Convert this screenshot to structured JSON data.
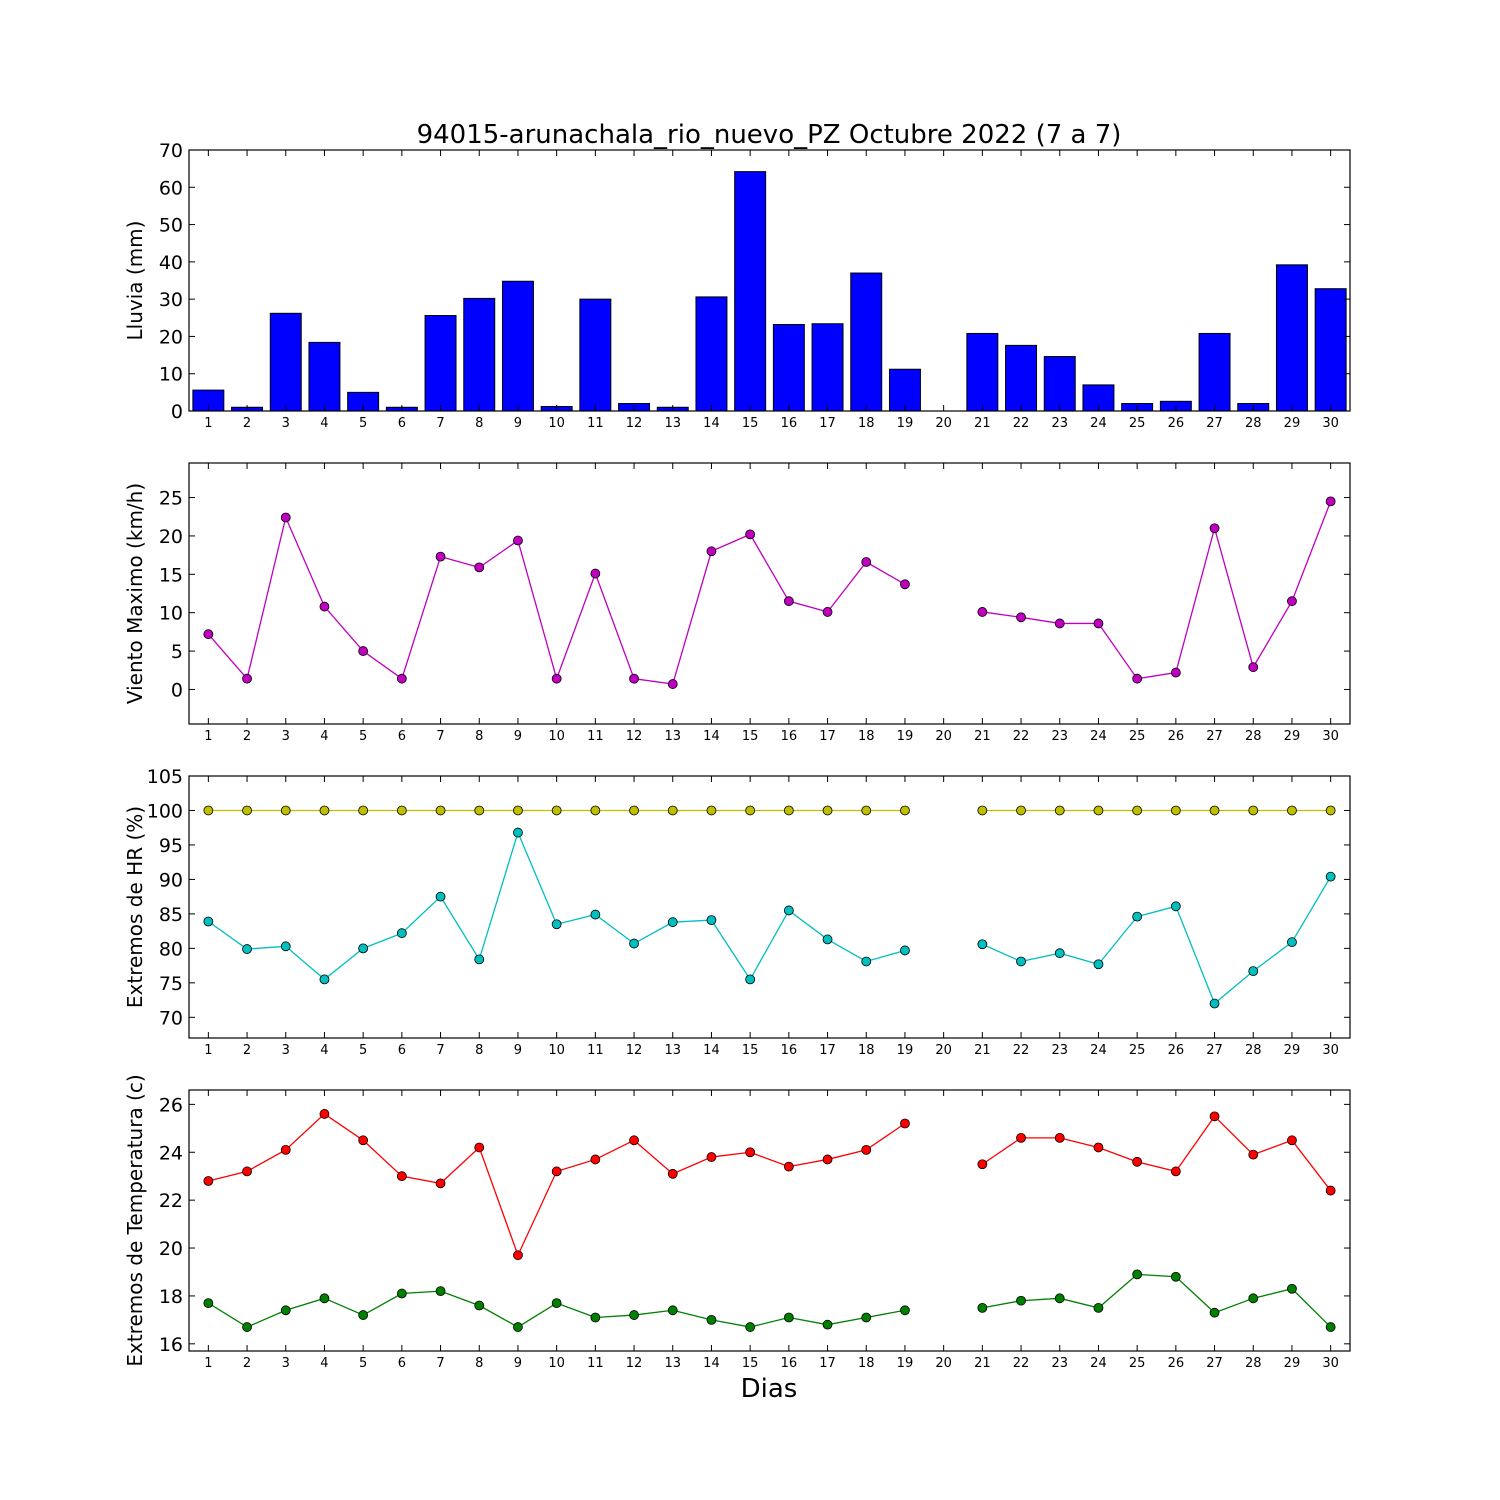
{
  "title": "94015-arunachala_rio_nuevo_PZ Octubre 2022  (7 a 7)",
  "xlabel": "Dias",
  "chart_data": [
    {
      "type": "bar",
      "ylabel": "Lluvia (mm)",
      "x": [
        1,
        2,
        3,
        4,
        5,
        6,
        7,
        8,
        9,
        10,
        11,
        12,
        13,
        14,
        15,
        16,
        17,
        18,
        19,
        20,
        21,
        22,
        23,
        24,
        25,
        26,
        27,
        28,
        29,
        30
      ],
      "xlim": [
        0.5,
        30.5
      ],
      "ylim": [
        0,
        70
      ],
      "yticks": [
        0,
        10,
        20,
        30,
        40,
        50,
        60,
        70
      ],
      "series": [
        {
          "color": "#0000ff",
          "values": [
            5.6,
            1.0,
            26.2,
            18.4,
            5.0,
            1.0,
            25.6,
            30.2,
            34.8,
            1.2,
            30.0,
            2.0,
            1.0,
            30.6,
            64.2,
            23.2,
            23.4,
            37.0,
            11.2,
            0,
            20.8,
            17.6,
            14.6,
            7.0,
            2.0,
            2.6,
            20.8,
            2.0,
            39.2,
            32.8
          ]
        }
      ]
    },
    {
      "type": "line",
      "ylabel": "Viento Maximo (km/h)",
      "x": [
        1,
        2,
        3,
        4,
        5,
        6,
        7,
        8,
        9,
        10,
        11,
        12,
        13,
        14,
        15,
        16,
        17,
        18,
        19,
        20,
        21,
        22,
        23,
        24,
        25,
        26,
        27,
        28,
        29,
        30
      ],
      "xlim": [
        0.5,
        30.5
      ],
      "ylim": [
        -4.5,
        29.5
      ],
      "yticks": [
        0,
        5,
        10,
        15,
        20,
        25
      ],
      "series": [
        {
          "color": "#bf00bf",
          "values": [
            7.2,
            1.4,
            22.4,
            10.8,
            5.0,
            1.4,
            17.3,
            15.9,
            19.4,
            1.4,
            15.1,
            1.4,
            0.7,
            18.0,
            20.2,
            11.5,
            10.1,
            16.6,
            13.7,
            null,
            10.1,
            9.4,
            8.6,
            8.6,
            1.4,
            2.2,
            21.0,
            2.9,
            11.5,
            24.5
          ]
        }
      ]
    },
    {
      "type": "line",
      "ylabel": "Extremos de HR (%)",
      "x": [
        1,
        2,
        3,
        4,
        5,
        6,
        7,
        8,
        9,
        10,
        11,
        12,
        13,
        14,
        15,
        16,
        17,
        18,
        19,
        20,
        21,
        22,
        23,
        24,
        25,
        26,
        27,
        28,
        29,
        30
      ],
      "xlim": [
        0.5,
        30.5
      ],
      "ylim": [
        67,
        105
      ],
      "yticks": [
        70,
        75,
        80,
        85,
        90,
        95,
        100,
        105
      ],
      "series": [
        {
          "color": "#bfbf00",
          "values": [
            100,
            100,
            100,
            100,
            100,
            100,
            100,
            100,
            100,
            100,
            100,
            100,
            100,
            100,
            100,
            100,
            100,
            100,
            100,
            null,
            100,
            100,
            100,
            100,
            100,
            100,
            100,
            100,
            100,
            100
          ]
        },
        {
          "color": "#00bfbf",
          "values": [
            83.9,
            79.9,
            80.3,
            75.5,
            80.0,
            82.2,
            87.5,
            78.4,
            96.8,
            83.5,
            84.9,
            80.7,
            83.8,
            84.1,
            75.5,
            85.5,
            81.3,
            78.1,
            79.7,
            null,
            80.6,
            78.1,
            79.3,
            77.7,
            84.6,
            86.1,
            72.0,
            76.7,
            80.9,
            90.4
          ]
        }
      ]
    },
    {
      "type": "line",
      "ylabel": "Extremos de Temperatura (c)",
      "x": [
        1,
        2,
        3,
        4,
        5,
        6,
        7,
        8,
        9,
        10,
        11,
        12,
        13,
        14,
        15,
        16,
        17,
        18,
        19,
        20,
        21,
        22,
        23,
        24,
        25,
        26,
        27,
        28,
        29,
        30
      ],
      "xlim": [
        0.5,
        30.5
      ],
      "ylim": [
        15.7,
        26.6
      ],
      "yticks": [
        16,
        18,
        20,
        22,
        24,
        26
      ],
      "series": [
        {
          "color": "#ff0000",
          "values": [
            22.8,
            23.2,
            24.1,
            25.6,
            24.5,
            23.0,
            22.7,
            24.2,
            19.7,
            23.2,
            23.7,
            24.5,
            23.1,
            23.8,
            24.0,
            23.4,
            23.7,
            24.1,
            25.2,
            null,
            23.5,
            24.6,
            24.6,
            24.2,
            23.6,
            23.2,
            25.5,
            23.9,
            24.5,
            22.4
          ]
        },
        {
          "color": "#008000",
          "values": [
            17.7,
            16.7,
            17.4,
            17.9,
            17.2,
            18.1,
            18.2,
            17.6,
            16.7,
            17.7,
            17.1,
            17.2,
            17.4,
            17.0,
            16.7,
            17.1,
            16.8,
            17.1,
            17.4,
            null,
            17.5,
            17.8,
            17.9,
            17.5,
            18.9,
            18.8,
            17.3,
            17.9,
            18.3,
            16.7
          ]
        }
      ]
    }
  ]
}
